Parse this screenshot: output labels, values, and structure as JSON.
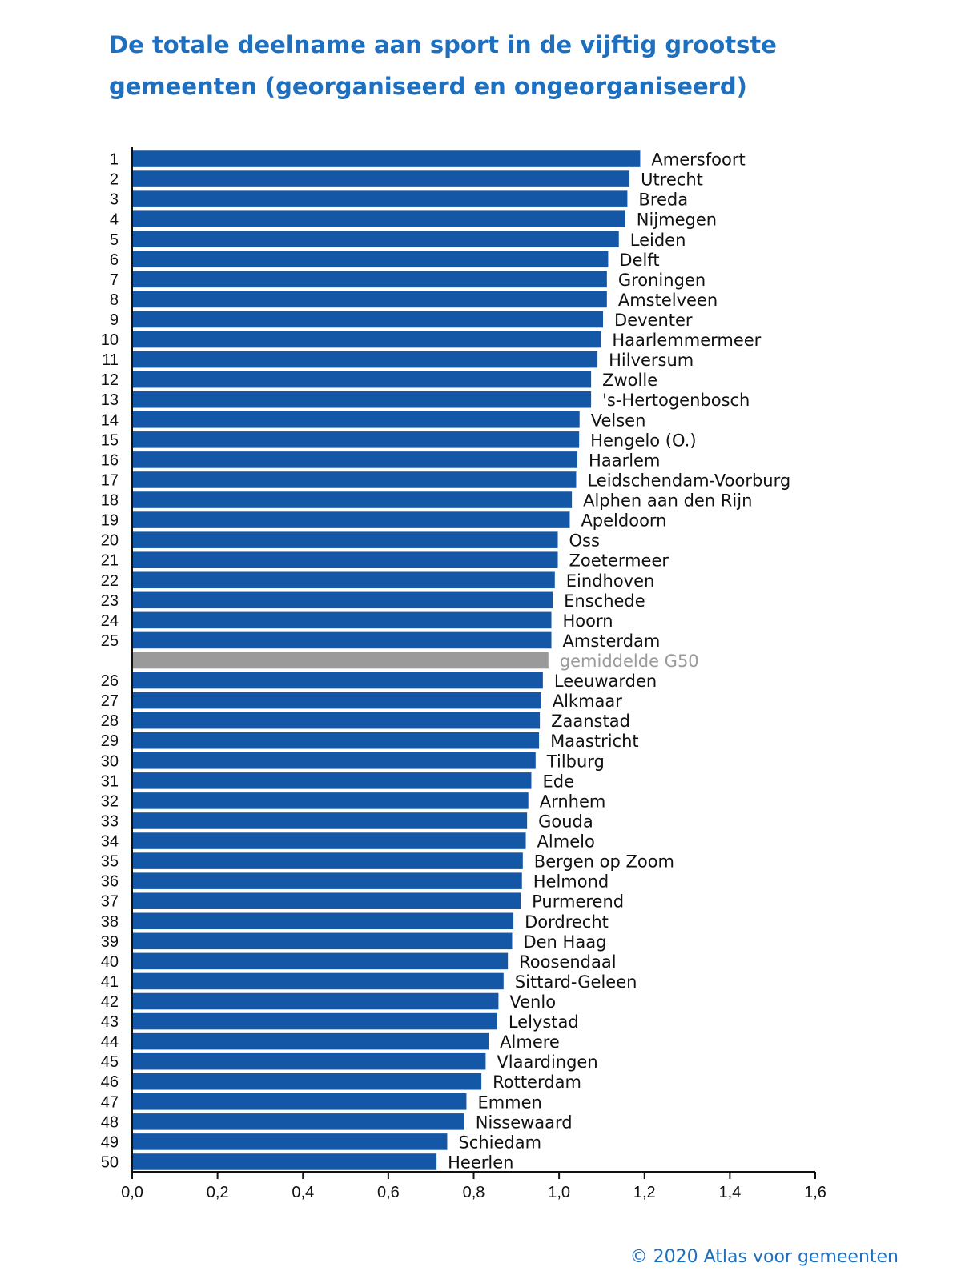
{
  "title": "De totale deelname aan sport in de vijftig grootste gemeenten (georganiseerd en ongeorganiseerd)",
  "credit": "© 2020 Atlas voor gemeenten",
  "colors": {
    "bar": "#1457a6",
    "average_bar": "#9a9a9a",
    "average_label": "#9a9a9a",
    "title": "#1f6fbf"
  },
  "chart_data": {
    "type": "bar",
    "orientation": "horizontal",
    "title": "De totale deelname aan sport in de vijftig grootste gemeenten (georganiseerd en ongeorganiseerd)",
    "xlabel": "",
    "ylabel": "",
    "xlim": [
      0,
      1.6
    ],
    "xticks": [
      "0,0",
      "0,2",
      "0,4",
      "0,6",
      "0,8",
      "1,0",
      "1,2",
      "1,4",
      "1,6"
    ],
    "grid": false,
    "legend": "none",
    "rows": [
      {
        "rank": "1",
        "name": "Amersfoort",
        "value": 1.19
      },
      {
        "rank": "2",
        "name": "Utrecht",
        "value": 1.165
      },
      {
        "rank": "3",
        "name": "Breda",
        "value": 1.16
      },
      {
        "rank": "4",
        "name": "Nijmegen",
        "value": 1.155
      },
      {
        "rank": "5",
        "name": "Leiden",
        "value": 1.14
      },
      {
        "rank": "6",
        "name": "Delft",
        "value": 1.115
      },
      {
        "rank": "7",
        "name": "Groningen",
        "value": 1.112
      },
      {
        "rank": "8",
        "name": "Amstelveen",
        "value": 1.112
      },
      {
        "rank": "9",
        "name": "Deventer",
        "value": 1.103
      },
      {
        "rank": "10",
        "name": "Haarlemmermeer",
        "value": 1.098
      },
      {
        "rank": "11",
        "name": "Hilversum",
        "value": 1.09
      },
      {
        "rank": "12",
        "name": "Zwolle",
        "value": 1.075
      },
      {
        "rank": "13",
        "name": "'s-Hertogenbosch",
        "value": 1.075
      },
      {
        "rank": "14",
        "name": "Velsen",
        "value": 1.048
      },
      {
        "rank": "15",
        "name": "Hengelo (O.)",
        "value": 1.047
      },
      {
        "rank": "16",
        "name": "Haarlem",
        "value": 1.043
      },
      {
        "rank": "17",
        "name": "Leidschendam-Voorburg",
        "value": 1.04
      },
      {
        "rank": "18",
        "name": "Alphen aan den Rijn",
        "value": 1.03
      },
      {
        "rank": "19",
        "name": "Apeldoorn",
        "value": 1.025
      },
      {
        "rank": "20",
        "name": "Oss",
        "value": 0.997
      },
      {
        "rank": "21",
        "name": "Zoetermeer",
        "value": 0.997
      },
      {
        "rank": "22",
        "name": "Eindhoven",
        "value": 0.99
      },
      {
        "rank": "23",
        "name": "Enschede",
        "value": 0.985
      },
      {
        "rank": "24",
        "name": "Hoorn",
        "value": 0.982
      },
      {
        "rank": "25",
        "name": "Amsterdam",
        "value": 0.982
      },
      {
        "rank": "",
        "name": "gemiddelde G50",
        "value": 0.975,
        "average": true
      },
      {
        "rank": "26",
        "name": "Leeuwarden",
        "value": 0.962
      },
      {
        "rank": "27",
        "name": "Alkmaar",
        "value": 0.958
      },
      {
        "rank": "28",
        "name": "Zaanstad",
        "value": 0.955
      },
      {
        "rank": "29",
        "name": "Maastricht",
        "value": 0.953
      },
      {
        "rank": "30",
        "name": "Tilburg",
        "value": 0.945
      },
      {
        "rank": "31",
        "name": "Ede",
        "value": 0.935
      },
      {
        "rank": "32",
        "name": "Arnhem",
        "value": 0.928
      },
      {
        "rank": "33",
        "name": "Gouda",
        "value": 0.925
      },
      {
        "rank": "34",
        "name": "Almelo",
        "value": 0.922
      },
      {
        "rank": "35",
        "name": "Bergen op Zoom",
        "value": 0.915
      },
      {
        "rank": "36",
        "name": "Helmond",
        "value": 0.913
      },
      {
        "rank": "37",
        "name": "Purmerend",
        "value": 0.91
      },
      {
        "rank": "38",
        "name": "Dordrecht",
        "value": 0.893
      },
      {
        "rank": "39",
        "name": "Den Haag",
        "value": 0.89
      },
      {
        "rank": "40",
        "name": "Roosendaal",
        "value": 0.88
      },
      {
        "rank": "41",
        "name": "Sittard-Geleen",
        "value": 0.87
      },
      {
        "rank": "42",
        "name": "Venlo",
        "value": 0.858
      },
      {
        "rank": "43",
        "name": "Lelystad",
        "value": 0.855
      },
      {
        "rank": "44",
        "name": "Almere",
        "value": 0.835
      },
      {
        "rank": "45",
        "name": "Vlaardingen",
        "value": 0.828
      },
      {
        "rank": "46",
        "name": "Rotterdam",
        "value": 0.818
      },
      {
        "rank": "47",
        "name": "Emmen",
        "value": 0.783
      },
      {
        "rank": "48",
        "name": "Nissewaard",
        "value": 0.778
      },
      {
        "rank": "49",
        "name": "Schiedam",
        "value": 0.738
      },
      {
        "rank": "50",
        "name": "Heerlen",
        "value": 0.713
      }
    ]
  }
}
